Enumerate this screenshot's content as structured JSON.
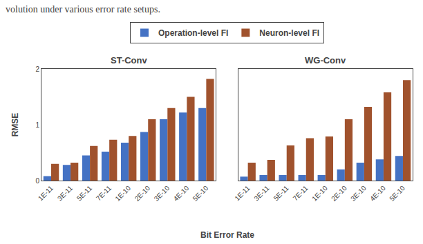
{
  "chart_data": [
    {
      "type": "bar",
      "title": "ST-Conv",
      "categories": [
        "1E-11",
        "3E-11",
        "5E-11",
        "7E-11",
        "1E-10",
        "2E-10",
        "3E-10",
        "4E-10",
        "5E-10"
      ],
      "series": [
        {
          "name": "Operation-level FI",
          "color": "#4472C4",
          "values": [
            0.08,
            0.28,
            0.45,
            0.52,
            0.68,
            0.87,
            1.1,
            1.22,
            1.3
          ]
        },
        {
          "name": "Neuron-level FI",
          "color": "#A0522D",
          "values": [
            0.3,
            0.32,
            0.62,
            0.73,
            0.8,
            1.1,
            1.3,
            1.5,
            1.82
          ]
        }
      ],
      "xlabel": "Bit Error Rate",
      "ylabel": "RMSE",
      "ylim": [
        0,
        2
      ],
      "yticks": [
        0,
        1,
        2
      ],
      "grid": false,
      "legend": "top",
      "annotations": [
        "volution under various error rate setups."
      ]
    },
    {
      "type": "bar",
      "title": "WG-Conv",
      "categories": [
        "1E-11",
        "3E-11",
        "5E-11",
        "7E-11",
        "1E-10",
        "2E-10",
        "3E-10",
        "4E-10",
        "5E-10"
      ],
      "series": [
        {
          "name": "Operation-level FI",
          "color": "#4472C4",
          "values": [
            0.07,
            0.1,
            0.1,
            0.1,
            0.1,
            0.2,
            0.32,
            0.38,
            0.44
          ]
        },
        {
          "name": "Neuron-level FI",
          "color": "#A0522D",
          "values": [
            0.32,
            0.37,
            0.63,
            0.76,
            0.79,
            1.1,
            1.32,
            1.58,
            1.8
          ]
        }
      ],
      "ylim": [
        0,
        2
      ],
      "yticks": [
        0,
        1,
        2
      ],
      "grid": false,
      "tick_labels": "x"
    }
  ]
}
